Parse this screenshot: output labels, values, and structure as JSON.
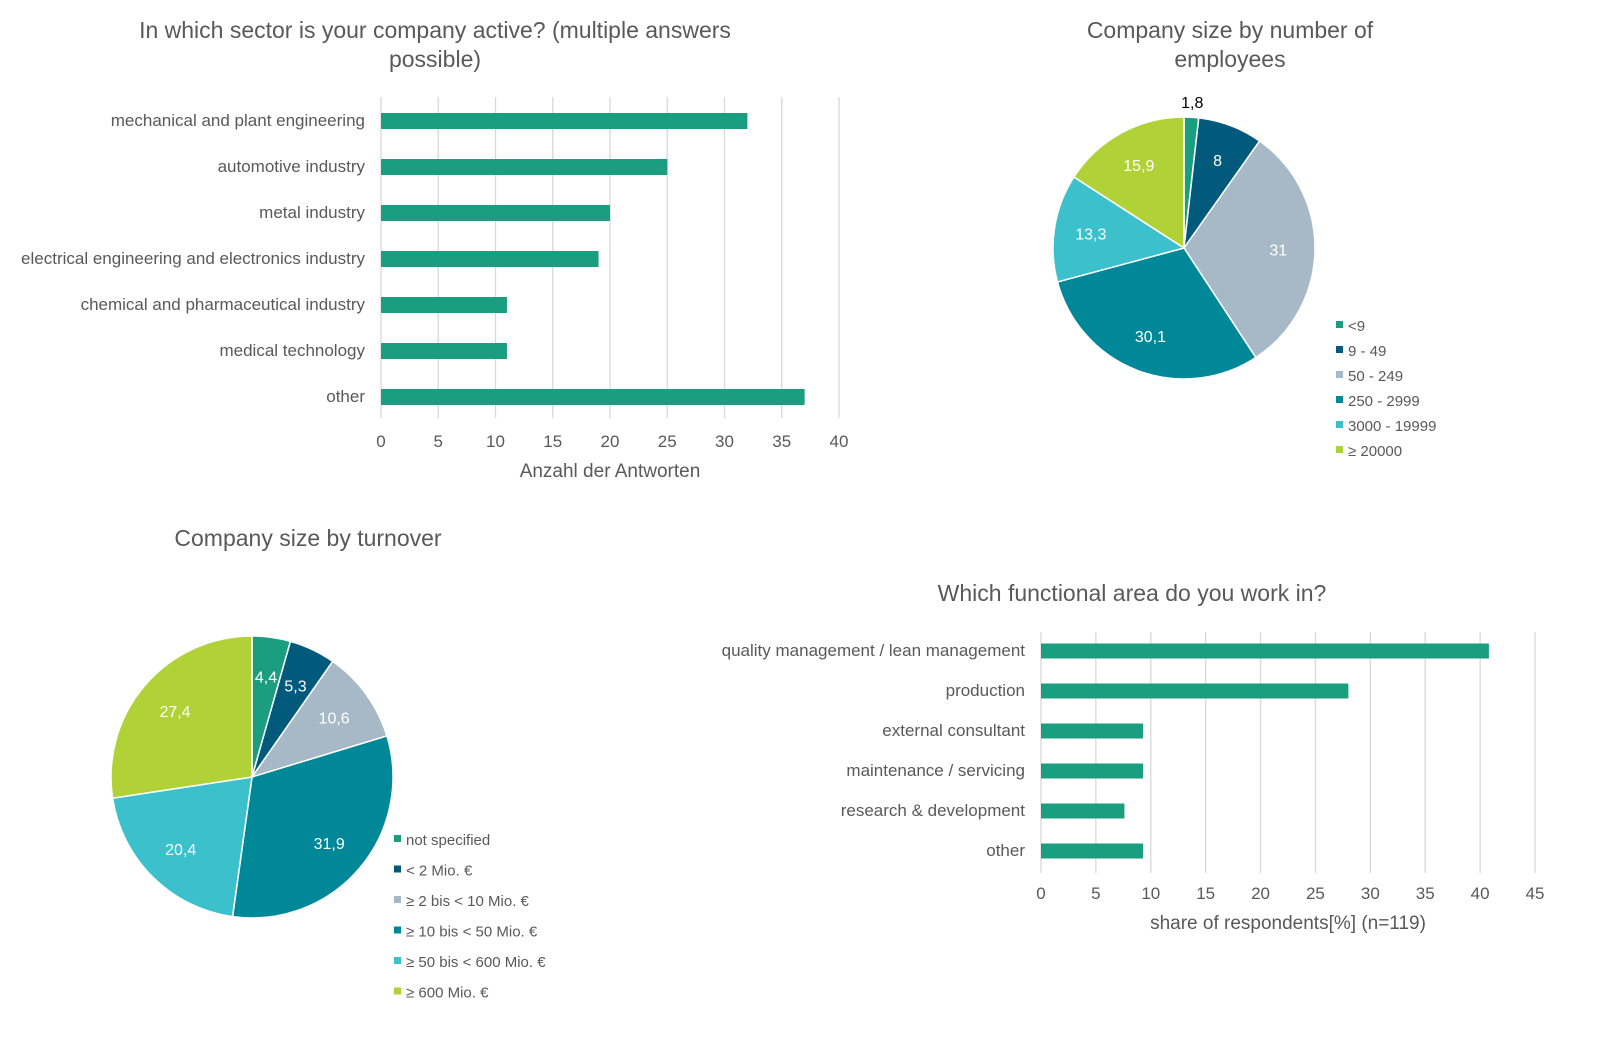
{
  "colors": {
    "bar": "#1b9e80",
    "grid": "#d9d9d9",
    "text": "#595959",
    "palette": [
      "#1b9e80",
      "#015a7c",
      "#a7b9c6",
      "#008898",
      "#3cc0cc",
      "#b0d236"
    ]
  },
  "chart_data": [
    {
      "type": "bar",
      "orientation": "horizontal",
      "title": "In which sector is your company active? (multiple answers possible)",
      "title_lines": [
        "In which sector is your company active? (multiple answers",
        "possible)"
      ],
      "categories": [
        "mechanical and plant engineering",
        "automotive industry",
        "metal industry",
        "electrical engineering and electronics industry",
        "chemical and pharmaceutical industry",
        "medical technology",
        "other"
      ],
      "values": [
        32,
        25,
        20,
        19,
        11,
        11,
        37
      ],
      "xlabel": "Anzahl der Antworten",
      "xlim": [
        0,
        40
      ],
      "xticks": [
        "0",
        "5",
        "10",
        "15",
        "20",
        "25",
        "30",
        "35",
        "40"
      ],
      "grid": true
    },
    {
      "type": "pie",
      "title": "Company size by number of employees",
      "title_lines": [
        "Company size by number of",
        "employees"
      ],
      "categories": [
        "<9",
        "9 - 49",
        "50 - 249",
        "250 - 2999",
        "3000 - 19999",
        "≥ 20000"
      ],
      "values": [
        1.8,
        8,
        31,
        30.1,
        13.3,
        15.9
      ],
      "value_labels": [
        "1,8",
        "8",
        "31",
        "30,1",
        "13,3",
        "15,9"
      ],
      "legend": "right"
    },
    {
      "type": "pie",
      "title": "Company size by turnover",
      "title_lines": [
        "Company size by turnover"
      ],
      "categories": [
        "not specified",
        "< 2 Mio. €",
        "≥ 2 bis < 10 Mio. €",
        "≥ 10 bis < 50 Mio. €",
        "≥ 50 bis < 600 Mio. €",
        "≥ 600 Mio. €"
      ],
      "values": [
        4.4,
        5.3,
        10.6,
        31.9,
        20.4,
        27.4
      ],
      "value_labels": [
        "4,4",
        "5,3",
        "10,6",
        "31,9",
        "20,4",
        "27,4"
      ],
      "legend": "right"
    },
    {
      "type": "bar",
      "orientation": "horizontal",
      "title": "Which functional area do you work in?",
      "title_lines": [
        "Which functional area do you work in?"
      ],
      "categories": [
        "quality management / lean management",
        "production",
        "external consultant",
        "maintenance / servicing",
        "research & development",
        "other"
      ],
      "values": [
        40.8,
        28,
        9.3,
        9.3,
        7.6,
        9.3
      ],
      "xlabel": "share of respondents[%] (n=119)",
      "xlim": [
        0,
        45
      ],
      "xticks": [
        "0",
        "5",
        "10",
        "15",
        "20",
        "25",
        "30",
        "35",
        "40",
        "45"
      ],
      "grid": true
    }
  ]
}
